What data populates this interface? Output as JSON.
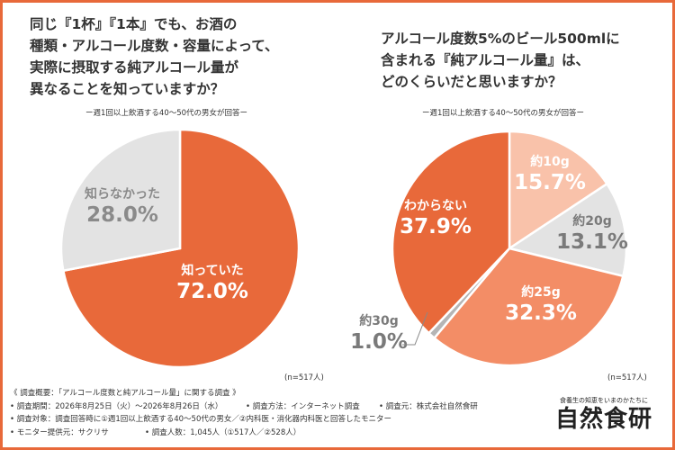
{
  "q1": {
    "title": "同じ『1杯』『1本』でも、お酒の\n種類・アルコール度数・容量によって、\n実際に摂取する純アルコール量が\n異なることを知っていますか？",
    "subtitle": "ー週1回以上飲酒する40～50代の男女が回答ー",
    "n_label": "(n=517人)"
  },
  "q2": {
    "title": "アルコール度数5%のビール500mlに\n含まれる『純アルコール量』は、\nどのくらいだと思いますか？",
    "subtitle": "ー週1回以上飲酒する40～50代の男女が回答ー",
    "n_label": "(n=517人)"
  },
  "chart_data": [
    {
      "type": "pie",
      "title": "同じ『1杯』『1本』でも、お酒の種類・アルコール度数・容量によって、実際に摂取する純アルコール量が異なることを知っていますか？",
      "slices": [
        {
          "label": "知っていた",
          "value": 72.0,
          "value_label": "72.0%",
          "color": "#e8693a",
          "text_color": "#ffffff"
        },
        {
          "label": "知らなかった",
          "value": 28.0,
          "value_label": "28.0%",
          "color": "#e3e3e3",
          "text_color": "#8a8a8a"
        }
      ]
    },
    {
      "type": "pie",
      "title": "アルコール度数5%のビール500mlに含まれる『純アルコール量』は、どのくらいだと思いますか？",
      "slices": [
        {
          "label": "約10g",
          "value": 15.7,
          "value_label": "15.7%",
          "color": "#f9c2aa",
          "text_color": "#ffffff"
        },
        {
          "label": "約20g",
          "value": 13.1,
          "value_label": "13.1%",
          "color": "#e3e3e3",
          "text_color": "#7a7a7a"
        },
        {
          "label": "約25g",
          "value": 32.3,
          "value_label": "32.3%",
          "color": "#f38d66",
          "text_color": "#ffffff"
        },
        {
          "label": "約30g",
          "value": 1.0,
          "value_label": "1.0%",
          "color": "#b5b5b5",
          "text_color": "#7a7a7a"
        },
        {
          "label": "わからない",
          "value": 37.9,
          "value_label": "37.9%",
          "color": "#e8693a",
          "text_color": "#ffffff"
        }
      ]
    }
  ],
  "footer": {
    "overview": "《 調査概要：「アルコール度数と純アルコール量」に関する調査 》",
    "period": "• 調査期間：2026年8月25日（火）～2026年8月26日（水）",
    "method": "• 調査方法：インターネット調査",
    "source": "• 調査元：株式会社自然食研",
    "target": "• 調査対象：調査回答時に①週1回以上飲酒する40～50代の男女／②内科医・消化器内科医と回答したモニター",
    "provider": "• モニター提供元：サクリサ",
    "count": "• 調査人数：1,045人（①517人／②528人）"
  },
  "brand": {
    "tagline": "食養生の知恵をいまのかたちに",
    "name": "自然食研"
  }
}
